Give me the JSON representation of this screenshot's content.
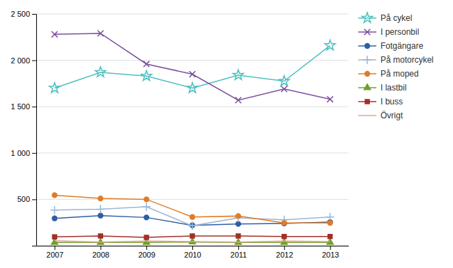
{
  "chart_data": {
    "type": "line",
    "x": [
      2007,
      2008,
      2009,
      2010,
      2011,
      2012,
      2013
    ],
    "series": [
      {
        "name": "På cykel",
        "color": "#4DBFBF",
        "marker": "star",
        "values": [
          1700,
          1870,
          1830,
          1700,
          1840,
          1775,
          2160
        ]
      },
      {
        "name": "I personbil",
        "color": "#7B4EA0",
        "marker": "x",
        "values": [
          2280,
          2290,
          1960,
          1850,
          1570,
          1690,
          1580
        ]
      },
      {
        "name": "Fotgängare",
        "color": "#2E5FA3",
        "marker": "circle",
        "values": [
          295,
          325,
          305,
          220,
          235,
          240,
          255
        ]
      },
      {
        "name": "På motorcykel",
        "color": "#9BB7D4",
        "marker": "plus",
        "values": [
          385,
          395,
          420,
          215,
          300,
          280,
          310
        ]
      },
      {
        "name": "På moped",
        "color": "#E07B28",
        "marker": "circle",
        "values": [
          545,
          510,
          500,
          310,
          320,
          245,
          245
        ]
      },
      {
        "name": "I lastbil",
        "color": "#70A028",
        "marker": "triangle",
        "values": [
          35,
          35,
          35,
          40,
          35,
          35,
          35
        ]
      },
      {
        "name": "I buss",
        "color": "#A03028",
        "marker": "square",
        "values": [
          95,
          105,
          90,
          105,
          105,
          100,
          100
        ]
      },
      {
        "name": "Övrigt",
        "color": "#E8A0A0",
        "marker": "none",
        "values": [
          55,
          40,
          50,
          45,
          40,
          50,
          45
        ]
      }
    ],
    "xlim": [
      2006.6,
      2013.4
    ],
    "xticks": [
      2007,
      2008,
      2009,
      2010,
      2011,
      2012,
      2013
    ],
    "ylim": [
      0,
      2500
    ],
    "yticks": [
      {
        "value": 0,
        "label": null
      },
      500,
      {
        "value": 1000,
        "label": "1 000"
      },
      {
        "value": 1500,
        "label": "1 500"
      },
      {
        "value": 2000,
        "label": "2 000"
      },
      {
        "value": 2500,
        "label": "2 500"
      }
    ],
    "grid": true,
    "legend": "right"
  }
}
